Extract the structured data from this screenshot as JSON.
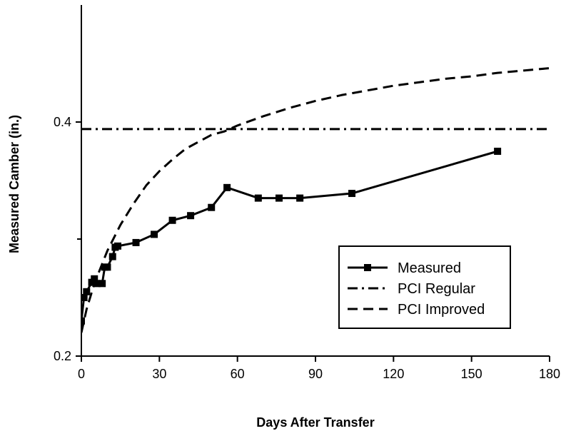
{
  "chart_data": {
    "type": "line",
    "title": "",
    "xlabel": "Days After Transfer",
    "ylabel": "Measured Camber (in.)",
    "xlim": [
      0,
      180
    ],
    "ylim": [
      0.2,
      0.5
    ],
    "x_ticks": [
      "0",
      "30",
      "60",
      "90",
      "120",
      "150",
      "180"
    ],
    "x_tick_values": [
      0,
      30,
      60,
      90,
      120,
      150,
      180
    ],
    "y_tick_labels": [
      "0.2",
      "0.4"
    ],
    "y_tick_values": [
      0.2,
      0.4
    ],
    "y_minor_tick_values": [
      0.3
    ],
    "grid": false,
    "legend_position": "lower-right",
    "series": [
      {
        "name": "Measured",
        "style": "solid-square-markers",
        "color": "#000000",
        "points": [
          [
            0,
            0.23
          ],
          [
            1,
            0.25
          ],
          [
            2,
            0.255
          ],
          [
            4,
            0.263
          ],
          [
            5,
            0.266
          ],
          [
            6,
            0.262
          ],
          [
            8,
            0.262
          ],
          [
            9,
            0.276
          ],
          [
            10,
            0.276
          ],
          [
            12,
            0.285
          ],
          [
            13,
            0.293
          ],
          [
            14,
            0.294
          ],
          [
            21,
            0.297
          ],
          [
            28,
            0.304
          ],
          [
            35,
            0.316
          ],
          [
            42,
            0.32
          ],
          [
            50,
            0.327
          ],
          [
            56,
            0.344
          ],
          [
            68,
            0.335
          ],
          [
            76,
            0.335
          ],
          [
            84,
            0.335
          ],
          [
            104,
            0.339
          ],
          [
            160,
            0.375
          ]
        ]
      },
      {
        "name": "PCI Regular",
        "style": "dash-dot",
        "color": "#000000",
        "points": [
          [
            0,
            0.394
          ],
          [
            180,
            0.394
          ]
        ]
      },
      {
        "name": "PCI Improved",
        "style": "dashed",
        "color": "#000000",
        "points": [
          [
            0,
            0.22
          ],
          [
            2,
            0.24
          ],
          [
            5,
            0.262
          ],
          [
            10,
            0.29
          ],
          [
            15,
            0.312
          ],
          [
            20,
            0.33
          ],
          [
            25,
            0.346
          ],
          [
            30,
            0.358
          ],
          [
            35,
            0.368
          ],
          [
            40,
            0.377
          ],
          [
            45,
            0.383
          ],
          [
            50,
            0.389
          ],
          [
            55,
            0.392
          ],
          [
            60,
            0.397
          ],
          [
            70,
            0.405
          ],
          [
            80,
            0.412
          ],
          [
            90,
            0.418
          ],
          [
            100,
            0.423
          ],
          [
            110,
            0.427
          ],
          [
            120,
            0.431
          ],
          [
            130,
            0.434
          ],
          [
            140,
            0.437
          ],
          [
            150,
            0.439
          ],
          [
            160,
            0.442
          ],
          [
            170,
            0.444
          ],
          [
            180,
            0.446
          ]
        ]
      }
    ]
  }
}
